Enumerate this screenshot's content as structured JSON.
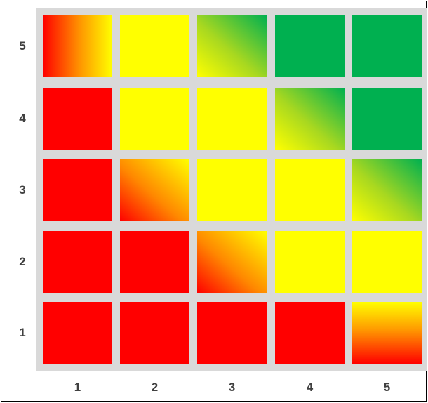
{
  "chart_data": {
    "type": "heatmap",
    "title": "",
    "xlabel": "",
    "ylabel": "",
    "x_categories": [
      "1",
      "2",
      "3",
      "4",
      "5"
    ],
    "y_categories": [
      "1",
      "2",
      "3",
      "4",
      "5"
    ],
    "colors": {
      "red": "#ff0000",
      "yellow": "#ffff00",
      "green": "#00b050",
      "grid": "#d9d9d9"
    },
    "cells": [
      {
        "x": "1",
        "y": "5",
        "fill": "red-yellow"
      },
      {
        "x": "2",
        "y": "5",
        "fill": "yellow"
      },
      {
        "x": "3",
        "y": "5",
        "fill": "yellow-green"
      },
      {
        "x": "4",
        "y": "5",
        "fill": "green"
      },
      {
        "x": "5",
        "y": "5",
        "fill": "green"
      },
      {
        "x": "1",
        "y": "4",
        "fill": "red"
      },
      {
        "x": "2",
        "y": "4",
        "fill": "yellow"
      },
      {
        "x": "3",
        "y": "4",
        "fill": "yellow"
      },
      {
        "x": "4",
        "y": "4",
        "fill": "yellow-green"
      },
      {
        "x": "5",
        "y": "4",
        "fill": "green"
      },
      {
        "x": "1",
        "y": "3",
        "fill": "red"
      },
      {
        "x": "2",
        "y": "3",
        "fill": "red-yellow"
      },
      {
        "x": "3",
        "y": "3",
        "fill": "yellow"
      },
      {
        "x": "4",
        "y": "3",
        "fill": "yellow"
      },
      {
        "x": "5",
        "y": "3",
        "fill": "yellow-green"
      },
      {
        "x": "1",
        "y": "2",
        "fill": "red"
      },
      {
        "x": "2",
        "y": "2",
        "fill": "red"
      },
      {
        "x": "3",
        "y": "2",
        "fill": "red-yellow"
      },
      {
        "x": "4",
        "y": "2",
        "fill": "yellow"
      },
      {
        "x": "5",
        "y": "2",
        "fill": "yellow"
      },
      {
        "x": "1",
        "y": "1",
        "fill": "red"
      },
      {
        "x": "2",
        "y": "1",
        "fill": "red"
      },
      {
        "x": "3",
        "y": "1",
        "fill": "red"
      },
      {
        "x": "4",
        "y": "1",
        "fill": "red"
      },
      {
        "x": "5",
        "y": "1",
        "fill": "red-yellow"
      }
    ]
  }
}
